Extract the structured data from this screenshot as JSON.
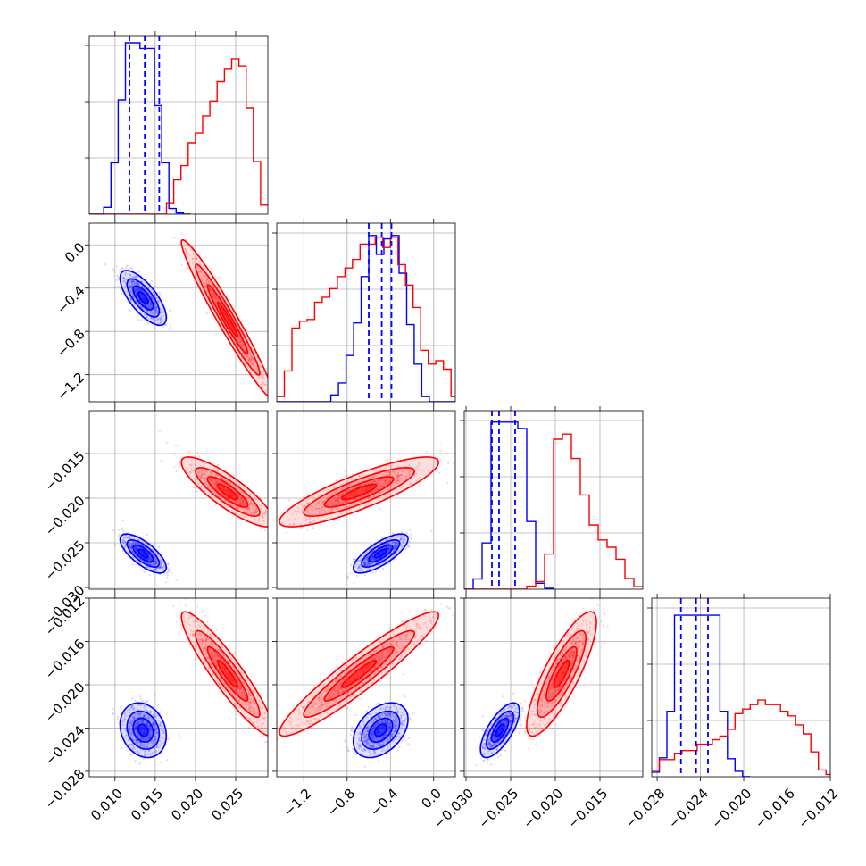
{
  "chart_data": {
    "type": "corner",
    "grid": true,
    "colors": {
      "blue": "#0000ff",
      "red": "#ff0000"
    },
    "parameters": [
      {
        "range": [
          0.0068,
          0.029
        ],
        "ticks": [
          0.01,
          0.015,
          0.02,
          0.025
        ],
        "tick_labels": [
          "0.010",
          "0.015",
          "0.020",
          "0.025"
        ]
      },
      {
        "range": [
          -1.45,
          0.2
        ],
        "ticks": [
          -1.2,
          -0.8,
          -0.4,
          0.0
        ],
        "tick_labels": [
          "−1.2",
          "−0.8",
          "−0.4",
          "0.0"
        ]
      },
      {
        "range": [
          -0.0302,
          -0.0102
        ],
        "ticks": [
          -0.03,
          -0.025,
          -0.02,
          -0.015
        ],
        "tick_labels": [
          "−0.030",
          "−0.025",
          "−0.020",
          "−0.015"
        ]
      },
      {
        "range": [
          -0.0285,
          -0.012
        ],
        "ticks": [
          -0.028,
          -0.024,
          -0.02,
          -0.016,
          -0.012
        ],
        "tick_labels": [
          "−0.028",
          "−0.024",
          "−0.020",
          "−0.016",
          "−0.012"
        ]
      }
    ],
    "histograms": [
      {
        "ymax": 3.0,
        "blue": {
          "edges": [
            0.0068,
            0.0077,
            0.0086,
            0.0095,
            0.0104,
            0.0113,
            0.0122,
            0.0131,
            0.014,
            0.0149,
            0.0158,
            0.0167,
            0.0176,
            0.0185,
            0.0194
          ],
          "heights": [
            0.0,
            0.0,
            0.12,
            0.9,
            2.0,
            3.0,
            3.0,
            2.9,
            2.9,
            1.9,
            0.9,
            0.1,
            0.02,
            0.0
          ]
        },
        "red": {
          "edges": [
            0.0068,
            0.0155,
            0.0164,
            0.0173,
            0.0182,
            0.0191,
            0.02,
            0.0209,
            0.0218,
            0.0227,
            0.0236,
            0.0245,
            0.0254,
            0.0263,
            0.0272,
            0.0281,
            0.029
          ],
          "heights": [
            0.0,
            0.0,
            0.2,
            0.6,
            0.85,
            1.25,
            1.42,
            1.72,
            1.98,
            2.32,
            2.55,
            2.72,
            2.59,
            1.86,
            0.92,
            0.16
          ]
        },
        "quantiles": [
          0.0118,
          0.0137,
          0.0155
        ]
      },
      {
        "ymax": 1.0,
        "blue": {
          "edges": [
            -1.45,
            -0.95,
            -0.88,
            -0.81,
            -0.74,
            -0.67,
            -0.6,
            -0.53,
            -0.46,
            -0.39,
            -0.32,
            -0.25,
            -0.18,
            -0.11,
            -0.04,
            0.2
          ],
          "heights": [
            0.0,
            0.04,
            0.11,
            0.27,
            0.46,
            0.73,
            0.97,
            0.86,
            0.95,
            0.97,
            0.75,
            0.45,
            0.22,
            0.03,
            0.0
          ]
        },
        "red": {
          "edges": [
            -1.45,
            -1.38,
            -1.31,
            -1.24,
            -1.17,
            -1.1,
            -1.03,
            -0.96,
            -0.89,
            -0.82,
            -0.75,
            -0.68,
            -0.61,
            -0.54,
            -0.47,
            -0.4,
            -0.33,
            -0.26,
            -0.19,
            -0.12,
            -0.05,
            0.02,
            0.09,
            0.16,
            0.2
          ],
          "heights": [
            0.03,
            0.18,
            0.43,
            0.47,
            0.48,
            0.58,
            0.61,
            0.66,
            0.73,
            0.78,
            0.83,
            0.92,
            0.92,
            0.96,
            0.9,
            0.96,
            0.8,
            0.68,
            0.55,
            0.3,
            0.22,
            0.24,
            0.19,
            0.03
          ]
        },
        "quantiles": [
          -0.6,
          -0.48,
          -0.39
        ]
      },
      {
        "ymax": 4.0,
        "blue": {
          "edges": [
            -0.0302,
            -0.0292,
            -0.0282,
            -0.0272,
            -0.0262,
            -0.0252,
            -0.0242,
            -0.0232,
            -0.0222,
            -0.0212,
            -0.0202
          ],
          "heights": [
            0.0,
            0.24,
            1.08,
            3.9,
            3.9,
            3.9,
            3.75,
            1.58,
            0.14,
            0.02
          ]
        },
        "red": {
          "edges": [
            -0.0302,
            -0.0232,
            -0.0222,
            -0.0212,
            -0.0202,
            -0.0192,
            -0.0182,
            -0.0172,
            -0.0162,
            -0.0152,
            -0.0142,
            -0.0132,
            -0.0122,
            -0.0112,
            -0.0102
          ],
          "heights": [
            0.0,
            0.07,
            0.18,
            0.82,
            3.5,
            3.62,
            3.05,
            2.2,
            1.5,
            1.15,
            0.98,
            0.7,
            0.25,
            0.06
          ]
        },
        "quantiles": [
          -0.0271,
          -0.0263,
          -0.0245
        ]
      },
      {
        "ymax": 3.8,
        "blue": {
          "edges": [
            -0.0285,
            -0.0278,
            -0.0271,
            -0.0264,
            -0.0257,
            -0.025,
            -0.0243,
            -0.0236,
            -0.0229,
            -0.0222,
            -0.0215,
            -0.0208,
            -0.0201,
            -0.0194
          ],
          "heights": [
            0.1,
            0.42,
            1.45,
            3.58,
            3.58,
            3.58,
            3.58,
            3.58,
            3.58,
            1.45,
            0.4,
            0.12,
            0.0
          ]
        },
        "red": {
          "edges": [
            -0.0285,
            -0.0278,
            -0.0271,
            -0.0264,
            -0.0257,
            -0.025,
            -0.0243,
            -0.0236,
            -0.0229,
            -0.0222,
            -0.0215,
            -0.0208,
            -0.0201,
            -0.0194,
            -0.0187,
            -0.018,
            -0.0173,
            -0.0166,
            -0.0159,
            -0.0152,
            -0.0145,
            -0.0138,
            -0.0131,
            -0.0124,
            -0.012
          ],
          "heights": [
            0.14,
            0.38,
            0.38,
            0.52,
            0.58,
            0.58,
            0.72,
            0.72,
            0.82,
            0.9,
            1.05,
            1.4,
            1.5,
            1.6,
            1.7,
            1.6,
            1.6,
            1.45,
            1.35,
            1.15,
            0.95,
            0.55,
            0.15,
            0.05
          ]
        },
        "quantiles": [
          -0.0258,
          -0.0244,
          -0.0233
        ]
      }
    ],
    "scatter_panels": [
      {
        "row": 1,
        "col": 0,
        "blue": {
          "center": [
            0.0135,
            -0.49
          ],
          "sigma": [
            0.00125,
            0.11
          ],
          "rho": -0.72
        },
        "red": {
          "center": [
            0.024,
            -0.69
          ],
          "sigma": [
            0.0025,
            0.32
          ],
          "rho": -0.97
        }
      },
      {
        "row": 2,
        "col": 0,
        "blue": {
          "center": [
            0.0135,
            -0.0262
          ],
          "sigma": [
            0.00125,
            0.00095
          ],
          "rho": -0.72
        },
        "red": {
          "center": [
            0.024,
            -0.0193
          ],
          "sigma": [
            0.0025,
            0.0017
          ],
          "rho": -0.85
        }
      },
      {
        "row": 2,
        "col": 1,
        "blue": {
          "center": [
            -0.49,
            -0.0262
          ],
          "sigma": [
            0.11,
            0.00095
          ],
          "rho": 0.75
        },
        "red": {
          "center": [
            -0.69,
            -0.0193
          ],
          "sigma": [
            0.32,
            0.0017
          ],
          "rho": 0.85
        }
      },
      {
        "row": 3,
        "col": 0,
        "blue": {
          "center": [
            0.0135,
            -0.0242
          ],
          "sigma": [
            0.00125,
            0.0011
          ],
          "rho": -0.2
        },
        "red": {
          "center": [
            0.024,
            -0.019
          ],
          "sigma": [
            0.0025,
            0.0025
          ],
          "rho": -0.92
        }
      },
      {
        "row": 3,
        "col": 1,
        "blue": {
          "center": [
            -0.49,
            -0.0242
          ],
          "sigma": [
            0.11,
            0.0011
          ],
          "rho": 0.4
        },
        "red": {
          "center": [
            -0.69,
            -0.019
          ],
          "sigma": [
            0.32,
            0.0025
          ],
          "rho": 0.94
        }
      },
      {
        "row": 3,
        "col": 2,
        "blue": {
          "center": [
            -0.0262,
            -0.0242
          ],
          "sigma": [
            0.00095,
            0.0011
          ],
          "rho": 0.7
        },
        "red": {
          "center": [
            -0.0193,
            -0.019
          ],
          "sigma": [
            0.0017,
            0.0025
          ],
          "rho": 0.83
        }
      }
    ]
  }
}
